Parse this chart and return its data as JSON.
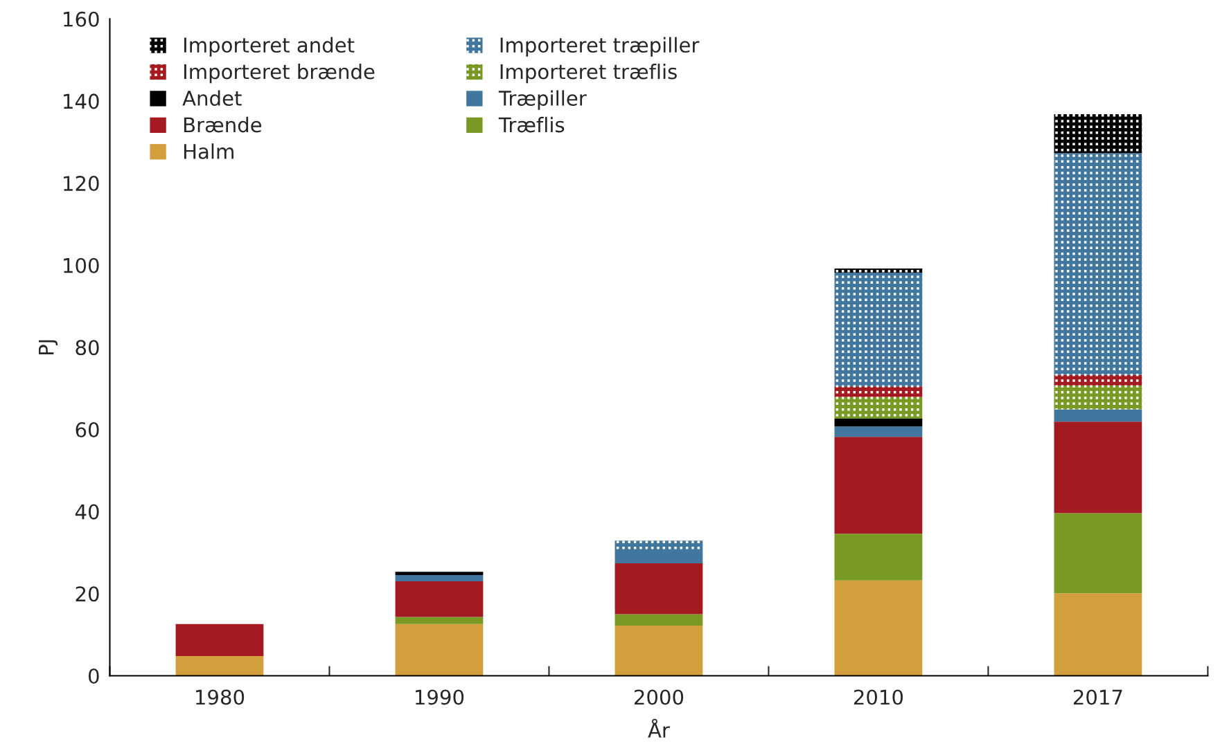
{
  "chart_data": {
    "type": "bar",
    "stacked": true,
    "xlabel": "År",
    "ylabel": "PJ",
    "categories": [
      "1980",
      "1990",
      "2000",
      "2010",
      "2017"
    ],
    "ylim": [
      0,
      160
    ],
    "yticks": [
      0,
      20,
      40,
      60,
      80,
      100,
      120,
      140,
      160
    ],
    "grid": false,
    "legend": "top left",
    "series": [
      {
        "name": "Halm",
        "color": "#d39e3c",
        "values": [
          4.8,
          12.6,
          12.2,
          23.2,
          20.1
        ]
      },
      {
        "name": "Træflis",
        "color": "#789a24",
        "values": [
          0,
          1.7,
          2.8,
          11.4,
          19.5
        ]
      },
      {
        "name": "Brænde",
        "color": "#a31b21",
        "values": [
          7.8,
          8.7,
          12.4,
          23.6,
          22.3
        ]
      },
      {
        "name": "Træpiller",
        "color": "#41769e",
        "values": [
          0,
          1.5,
          3.0,
          2.5,
          3.0
        ]
      },
      {
        "name": "Andet",
        "color": "#000000",
        "values": [
          0,
          0.8,
          0,
          1.9,
          0
        ]
      },
      {
        "name": "Importeret træflis",
        "color": "#789a24",
        "values": [
          0,
          0,
          0,
          5.3,
          5.8
        ]
      },
      {
        "name": "Importeret brænde",
        "color": "#a31b21",
        "values": [
          0,
          0,
          0,
          2.6,
          2.6
        ]
      },
      {
        "name": "Importeret træpiller",
        "color": "#41769e",
        "values": [
          0,
          0,
          2.5,
          27.7,
          54.0
        ]
      },
      {
        "name": "Importeret andet",
        "color": "#000000",
        "values": [
          0,
          0,
          0,
          1.0,
          9.5
        ]
      }
    ]
  }
}
